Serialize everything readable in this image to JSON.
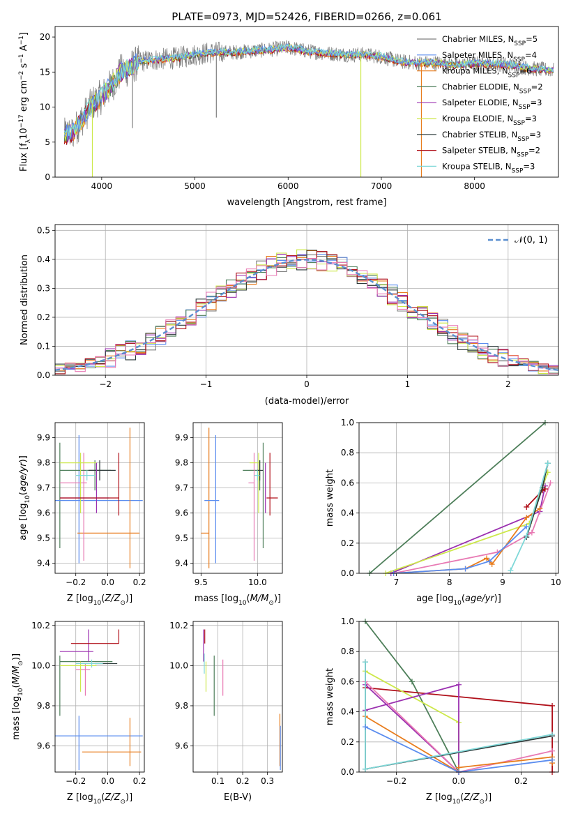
{
  "figure": {
    "title": "PLATE=0973, MJD=52426, FIBERID=0266, z=0.061"
  },
  "colors": {
    "Chabrier MILES": "#7f7f7f",
    "Salpeter MILES": "#5b8def",
    "Kroupa MILES": "#e87d1e",
    "Chabrier ELODIE": "#4e7f5a",
    "Salpeter ELODIE": "#9b30b0",
    "Kroupa ELODIE": "#cde84a",
    "Chabrier STELIB": "#2e3b3b",
    "Salpeter STELIB": "#b0101a",
    "Kroupa STELIB": "#7fd8d8",
    "pink": "#e87ab4",
    "normal": "#5b8fd0"
  },
  "chart_data": [
    {
      "id": "spectrum",
      "type": "line",
      "xlabel": "wavelength [Angstrom, rest frame]",
      "ylabel": "Flux [f$_\\lambda$10$^{-17}$ erg cm$^{-2}$ s$^{-1}$ A$^{-1}$]",
      "xlim": [
        3500,
        8900
      ],
      "ylim": [
        0,
        21.5
      ],
      "xticks": [
        4000,
        5000,
        6000,
        7000,
        8000
      ],
      "yticks": [
        0,
        5,
        10,
        15,
        20
      ],
      "grid": false,
      "legend": "upper right",
      "legend_entries": [
        {
          "model": "Chabrier MILES",
          "nssp": "5"
        },
        {
          "model": "Salpeter MILES",
          "nssp": "4"
        },
        {
          "model": "Kroupa MILES",
          "nssp": "6"
        },
        {
          "model": "Chabrier ELODIE",
          "nssp": "2"
        },
        {
          "model": "Salpeter ELODIE",
          "nssp": "3"
        },
        {
          "model": "Kroupa ELODIE",
          "nssp": "3"
        },
        {
          "model": "Chabrier STELIB",
          "nssp": "3"
        },
        {
          "model": "Salpeter STELIB",
          "nssp": "2"
        },
        {
          "model": "Kroupa STELIB",
          "nssp": "3"
        }
      ],
      "continuum": {
        "x": [
          3600,
          3700,
          3800,
          3900,
          4000,
          4100,
          4200,
          4300,
          4400,
          4600,
          4800,
          5000,
          5200,
          5400,
          5600,
          5800,
          6000,
          6200,
          6400,
          6600,
          6800,
          7000,
          7200,
          7400,
          7600,
          7800,
          8000,
          8200,
          8400,
          8600,
          8800
        ],
        "y": [
          6.0,
          6.5,
          8.5,
          10.5,
          11.5,
          13.0,
          15.0,
          15.5,
          16.5,
          16.8,
          17.0,
          17.5,
          17.8,
          17.8,
          18.0,
          18.2,
          18.5,
          18.0,
          17.7,
          17.5,
          17.5,
          17.2,
          16.5,
          16.3,
          16.3,
          16.0,
          16.2,
          16.2,
          16.0,
          15.5,
          15.3
        ]
      },
      "dropouts": [
        {
          "x": 3900,
          "y": 0,
          "series": "Kroupa ELODIE"
        },
        {
          "x": 4330,
          "y": 7.0,
          "series": "Chabrier MILES"
        },
        {
          "x": 5230,
          "y": 8.5,
          "series": "Chabrier MILES"
        },
        {
          "x": 6780,
          "y": 0,
          "series": "Kroupa ELODIE"
        },
        {
          "x": 7430,
          "y": 0,
          "series": "Kroupa MILES"
        }
      ]
    },
    {
      "id": "residuals",
      "type": "line",
      "xlabel": "(data-model)/error",
      "ylabel": "Normed distribution",
      "xlim": [
        -2.5,
        2.5
      ],
      "ylim": [
        0,
        0.52
      ],
      "xticks": [
        -2,
        -1,
        0,
        1,
        2
      ],
      "yticks": [
        0.0,
        0.1,
        0.2,
        0.3,
        0.4,
        0.5
      ],
      "grid": true,
      "legend": "upper right",
      "legend_label": "N(0,1)",
      "bin_width": 0.1,
      "normal": {
        "mean": 0,
        "sigma": 1
      }
    },
    {
      "id": "age-Z",
      "type": "scatter",
      "xlabel": "Z [log10(Z/Z_sun)]",
      "ylabel": "age [log10(age/yr)]",
      "xlim": [
        -0.33,
        0.23
      ],
      "ylim": [
        9.36,
        9.96
      ],
      "xticks": [
        -0.2,
        0.0,
        0.2
      ],
      "yticks": [
        9.4,
        9.5,
        9.6,
        9.7,
        9.8,
        9.9
      ],
      "grid": true,
      "points": [
        {
          "x": -0.3,
          "y": 9.67,
          "xerr": [
            0.0,
            0.0
          ],
          "yerr": [
            0.21,
            0.21
          ],
          "color": "#4e7f5a"
        },
        {
          "x": -0.18,
          "y": 9.65,
          "xerr": [
            0.16,
            0.4
          ],
          "yerr": [
            0.25,
            0.26
          ],
          "color": "#5b8def"
        },
        {
          "x": 0.14,
          "y": 9.52,
          "xerr": [
            0.33,
            0.06
          ],
          "yerr": [
            0.14,
            0.42
          ],
          "color": "#e87d1e"
        },
        {
          "x": -0.15,
          "y": 9.72,
          "xerr": [
            0.15,
            0.02
          ],
          "yerr": [
            0.31,
            0.12
          ],
          "color": "#e87ab4"
        },
        {
          "x": -0.08,
          "y": 9.77,
          "xerr": [
            0.22,
            0.1
          ],
          "yerr": [
            0.08,
            0.04
          ],
          "color": "#4e7f5a"
        },
        {
          "x": -0.17,
          "y": 9.8,
          "xerr": [
            0.13,
            0.1
          ],
          "yerr": [
            0.2,
            0.04
          ],
          "color": "#cde84a"
        },
        {
          "x": -0.05,
          "y": 9.77,
          "xerr": [
            0.07,
            0.1
          ],
          "yerr": [
            0.04,
            0.04
          ],
          "color": "#2e3b3b"
        },
        {
          "x": -0.07,
          "y": 9.66,
          "xerr": [
            0.23,
            0.08
          ],
          "yerr": [
            0.06,
            0.14
          ],
          "color": "#9b30b0"
        },
        {
          "x": 0.07,
          "y": 9.66,
          "xerr": [
            0.37,
            0.0
          ],
          "yerr": [
            0.07,
            0.18
          ],
          "color": "#b0101a"
        },
        {
          "x": -0.13,
          "y": 9.75,
          "xerr": [
            0.07,
            0.05
          ],
          "yerr": [
            0.02,
            0.02
          ],
          "color": "#7fd8d8"
        }
      ]
    },
    {
      "id": "age-mass",
      "type": "scatter",
      "xlabel": "mass [log10(M/M_sun)]",
      "ylabel": "",
      "xlim": [
        9.43,
        10.22
      ],
      "ylim": [
        9.36,
        9.96
      ],
      "xticks": [
        9.5,
        10.0
      ],
      "yticks": [
        9.4,
        9.5,
        9.6,
        9.7,
        9.8,
        9.9
      ],
      "grid": true,
      "points": [
        {
          "x": 9.57,
          "y": 9.52,
          "xerr": [
            0.07,
            0.0
          ],
          "yerr": [
            0.14,
            0.42
          ],
          "color": "#e87d1e"
        },
        {
          "x": 9.63,
          "y": 9.65,
          "xerr": [
            0.1,
            0.03
          ],
          "yerr": [
            0.25,
            0.26
          ],
          "color": "#5b8def"
        },
        {
          "x": 10.05,
          "y": 9.67,
          "xerr": [
            0.0,
            0.0
          ],
          "yerr": [
            0.21,
            0.21
          ],
          "color": "#4e7f5a"
        },
        {
          "x": 10.02,
          "y": 9.77,
          "xerr": [
            0.15,
            0.0
          ],
          "yerr": [
            0.08,
            0.04
          ],
          "color": "#4e7f5a"
        },
        {
          "x": 9.97,
          "y": 9.72,
          "xerr": [
            0.05,
            0.0
          ],
          "yerr": [
            0.31,
            0.12
          ],
          "color": "#e87ab4"
        },
        {
          "x": 10.01,
          "y": 9.8,
          "xerr": [
            0.08,
            0.0
          ],
          "yerr": [
            0.2,
            0.04
          ],
          "color": "#cde84a"
        },
        {
          "x": 10.02,
          "y": 9.77,
          "xerr": [
            0.02,
            0.03
          ],
          "yerr": [
            0.04,
            0.04
          ],
          "color": "#2e3b3b"
        },
        {
          "x": 10.07,
          "y": 9.66,
          "xerr": [
            0.0,
            0.0
          ],
          "yerr": [
            0.06,
            0.14
          ],
          "color": "#9b30b0"
        },
        {
          "x": 10.11,
          "y": 9.66,
          "xerr": [
            0.03,
            0.07
          ],
          "yerr": [
            0.07,
            0.18
          ],
          "color": "#b0101a"
        },
        {
          "x": 10.0,
          "y": 9.75,
          "xerr": [
            0.03,
            0.02
          ],
          "yerr": [
            0.02,
            0.02
          ],
          "color": "#7fd8d8"
        }
      ]
    },
    {
      "id": "weight-age",
      "type": "line",
      "xlabel": "age [log10(age/yr)]",
      "ylabel": "mass weight",
      "xlim": [
        6.3,
        10.05
      ],
      "ylim": [
        0,
        1.0
      ],
      "xticks": [
        7,
        8,
        9,
        10
      ],
      "yticks": [
        0.0,
        0.2,
        0.4,
        0.6,
        0.8,
        1.0
      ],
      "grid": true,
      "series": [
        {
          "color": "#4e7f5a",
          "x": [
            6.5,
            9.8
          ],
          "y": [
            0.0,
            1.0
          ]
        },
        {
          "color": "#9b30b0",
          "x": [
            6.9,
            9.7,
            9.8
          ],
          "y": [
            0.0,
            0.41,
            0.58
          ]
        },
        {
          "color": "#cde84a",
          "x": [
            6.8,
            9.5,
            9.85
          ],
          "y": [
            0.0,
            0.33,
            0.67
          ]
        },
        {
          "color": "#e87ab4",
          "x": [
            6.95,
            8.9,
            9.55,
            9.9
          ],
          "y": [
            0.0,
            0.14,
            0.27,
            0.6
          ]
        },
        {
          "color": "#e87d1e",
          "x": [
            6.95,
            8.3,
            8.7,
            8.8,
            9.45,
            9.7
          ],
          "y": [
            0.0,
            0.03,
            0.1,
            0.06,
            0.37,
            0.43
          ]
        },
        {
          "color": "#5b8def",
          "x": [
            6.95,
            8.3,
            8.75,
            9.45
          ],
          "y": [
            0.0,
            0.03,
            0.08,
            0.31
          ]
        },
        {
          "color": "#b0101a",
          "x": [
            9.45,
            9.75,
            9.8
          ],
          "y": [
            0.44,
            0.55,
            0.56
          ]
        },
        {
          "color": "#2e3b3b",
          "x": [
            9.45,
            9.75,
            9.85
          ],
          "y": [
            0.24,
            0.57,
            0.73
          ]
        },
        {
          "color": "#7fd8d8",
          "x": [
            9.15,
            9.45,
            9.85
          ],
          "y": [
            0.02,
            0.25,
            0.73
          ]
        }
      ]
    },
    {
      "id": "mass-Z",
      "type": "scatter",
      "xlabel": "Z [log10(Z/Z_sun)]",
      "ylabel": "mass [log10(M/M_sun)]",
      "xlim": [
        -0.33,
        0.23
      ],
      "ylim": [
        9.47,
        10.22
      ],
      "xticks": [
        -0.2,
        0.0,
        0.2
      ],
      "yticks": [
        9.6,
        9.8,
        10.0,
        10.2
      ],
      "grid": true,
      "points": [
        {
          "x": -0.3,
          "y": 9.98,
          "xerr": [
            0.0,
            0.0
          ],
          "yerr": [
            0.23,
            0.07
          ],
          "color": "#4e7f5a"
        },
        {
          "x": -0.18,
          "y": 9.65,
          "xerr": [
            0.15,
            0.4
          ],
          "yerr": [
            0.17,
            0.1
          ],
          "color": "#5b8def"
        },
        {
          "x": 0.14,
          "y": 9.57,
          "xerr": [
            0.3,
            0.07
          ],
          "yerr": [
            0.07,
            0.17
          ],
          "color": "#e87d1e"
        },
        {
          "x": -0.14,
          "y": 9.98,
          "xerr": [
            0.06,
            0.03
          ],
          "yerr": [
            0.13,
            0.03
          ],
          "color": "#e87ab4"
        },
        {
          "x": -0.08,
          "y": 10.02,
          "xerr": [
            0.22,
            0.11
          ],
          "yerr": [
            0.0,
            0.0
          ],
          "color": "#4e7f5a"
        },
        {
          "x": -0.17,
          "y": 10.0,
          "xerr": [
            0.13,
            0.1
          ],
          "yerr": [
            0.13,
            0.02
          ],
          "color": "#cde84a"
        },
        {
          "x": -0.05,
          "y": 10.01,
          "xerr": [
            0.03,
            0.11
          ],
          "yerr": [
            0.0,
            0.0
          ],
          "color": "#2e3b3b"
        },
        {
          "x": -0.12,
          "y": 10.07,
          "xerr": [
            0.18,
            0.03
          ],
          "yerr": [
            0.05,
            0.11
          ],
          "color": "#9b30b0"
        },
        {
          "x": 0.07,
          "y": 10.11,
          "xerr": [
            0.3,
            0.0
          ],
          "yerr": [
            0.0,
            0.07
          ],
          "color": "#b0101a"
        },
        {
          "x": -0.1,
          "y": 10.01,
          "xerr": [
            0.1,
            0.07
          ],
          "yerr": [
            0.02,
            0.02
          ],
          "color": "#7fd8d8"
        }
      ]
    },
    {
      "id": "mass-ebv",
      "type": "scatter",
      "xlabel": "E(B-V)",
      "ylabel": "",
      "xlim": [
        0.0,
        0.36
      ],
      "ylim": [
        9.47,
        10.22
      ],
      "xticks": [
        0.1,
        0.2,
        0.3
      ],
      "yticks": [
        9.6,
        9.8,
        10.0,
        10.2
      ],
      "grid": true,
      "points": [
        {
          "x": 0.042,
          "y": 10.07,
          "yerr": [
            0.05,
            0.11
          ],
          "color": "#9b30b0"
        },
        {
          "x": 0.047,
          "y": 10.11,
          "yerr": [
            0.0,
            0.07
          ],
          "color": "#b0101a"
        },
        {
          "x": 0.045,
          "y": 10.01,
          "yerr": [
            0.05,
            0.05
          ],
          "color": "#7fd8d8"
        },
        {
          "x": 0.052,
          "y": 10.0,
          "yerr": [
            0.13,
            0.02
          ],
          "color": "#cde84a"
        },
        {
          "x": 0.085,
          "y": 9.98,
          "yerr": [
            0.23,
            0.07
          ],
          "color": "#4e7f5a"
        },
        {
          "x": 0.12,
          "y": 9.98,
          "yerr": [
            0.13,
            0.05
          ],
          "color": "#e87ab4"
        },
        {
          "x": 0.35,
          "y": 9.57,
          "yerr": [
            0.07,
            0.19
          ],
          "color": "#e87d1e"
        },
        {
          "x": 0.352,
          "y": 9.6,
          "yerr": [
            0.12,
            0.1
          ],
          "color": "#5b8def"
        }
      ]
    },
    {
      "id": "weight-Z",
      "type": "line",
      "xlabel": "Z [log10(Z/Z_sun)]",
      "ylabel": "mass weight",
      "xlim": [
        -0.32,
        0.32
      ],
      "ylim": [
        0,
        1.0
      ],
      "xticks": [
        -0.2,
        0.0,
        0.2
      ],
      "yticks": [
        0.0,
        0.2,
        0.4,
        0.6,
        0.8,
        1.0
      ],
      "grid": true,
      "series": [
        {
          "color": "#4e7f5a",
          "x": [
            -0.3,
            -0.15,
            0.0
          ],
          "y": [
            1.0,
            0.6,
            0.0
          ]
        },
        {
          "color": "#b0101a",
          "x": [
            -0.3,
            0.3,
            0.3
          ],
          "y": [
            0.56,
            0.44,
            0.0
          ]
        },
        {
          "color": "#cde84a",
          "x": [
            -0.3,
            0.0,
            0.0
          ],
          "y": [
            0.67,
            0.33,
            0.0
          ]
        },
        {
          "color": "#9b30b0",
          "x": [
            -0.3,
            0.0,
            0.0,
            -0.3
          ],
          "y": [
            0.41,
            0.58,
            0.0,
            0.58
          ]
        },
        {
          "color": "#e87ab4",
          "x": [
            -0.3,
            0.0,
            0.3
          ],
          "y": [
            0.6,
            0.0,
            0.14
          ]
        },
        {
          "color": "#e87d1e",
          "x": [
            -0.3,
            0.0,
            0.0,
            0.3,
            0.3
          ],
          "y": [
            0.37,
            0.0,
            0.03,
            0.1,
            0.06
          ]
        },
        {
          "color": "#2e3b3b",
          "x": [
            -0.3,
            -0.3,
            0.3
          ],
          "y": [
            0.73,
            0.02,
            0.24
          ]
        },
        {
          "color": "#7fd8d8",
          "x": [
            -0.3,
            -0.3,
            0.3
          ],
          "y": [
            0.73,
            0.02,
            0.25
          ]
        },
        {
          "color": "#5b8def",
          "x": [
            -0.3,
            0.0,
            0.3
          ],
          "y": [
            0.3,
            0.0,
            0.08
          ]
        }
      ]
    }
  ]
}
